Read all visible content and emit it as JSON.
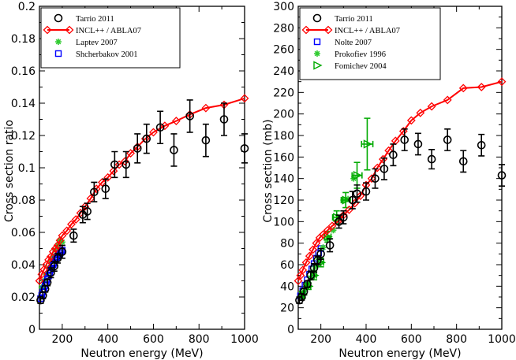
{
  "chart_data": [
    {
      "type": "scatter",
      "xlabel": "Neutron energy (MeV)",
      "ylabel": "Cross section ratio",
      "xlim": [
        100,
        1000
      ],
      "ylim": [
        0,
        0.2
      ],
      "xticks": [
        200,
        400,
        600,
        800,
        1000
      ],
      "yticks": [
        0,
        0.02,
        0.04,
        0.06,
        0.08,
        0.1,
        0.12,
        0.14,
        0.16,
        0.18,
        0.2
      ],
      "xtick_labels": [
        "200",
        "400",
        "600",
        "800",
        "1000"
      ],
      "ytick_labels": [
        "0",
        "0.02",
        "0.04",
        "0.06",
        "0.08",
        "0.1",
        "0.12",
        "0.14",
        "0.16",
        "0.18",
        "0.2"
      ],
      "grid": false,
      "legend_position": "top-left",
      "series": [
        {
          "name": "Tarrio 2011",
          "marker": "circle-open",
          "color": "#000000",
          "points": [
            {
              "x": 105,
              "y": 0.018,
              "e": 0.002
            },
            {
              "x": 115,
              "y": 0.021,
              "e": 0.002
            },
            {
              "x": 125,
              "y": 0.025,
              "e": 0.002
            },
            {
              "x": 135,
              "y": 0.029,
              "e": 0.002
            },
            {
              "x": 150,
              "y": 0.035,
              "e": 0.003
            },
            {
              "x": 165,
              "y": 0.039,
              "e": 0.003
            },
            {
              "x": 180,
              "y": 0.044,
              "e": 0.003
            },
            {
              "x": 200,
              "y": 0.048,
              "e": 0.004
            },
            {
              "x": 250,
              "y": 0.058,
              "e": 0.004
            },
            {
              "x": 290,
              "y": 0.071,
              "e": 0.005
            },
            {
              "x": 310,
              "y": 0.073,
              "e": 0.005
            },
            {
              "x": 340,
              "y": 0.085,
              "e": 0.006
            },
            {
              "x": 390,
              "y": 0.087,
              "e": 0.006
            },
            {
              "x": 430,
              "y": 0.102,
              "e": 0.008
            },
            {
              "x": 480,
              "y": 0.102,
              "e": 0.008
            },
            {
              "x": 530,
              "y": 0.112,
              "e": 0.009
            },
            {
              "x": 570,
              "y": 0.118,
              "e": 0.009
            },
            {
              "x": 630,
              "y": 0.125,
              "e": 0.01
            },
            {
              "x": 690,
              "y": 0.111,
              "e": 0.01
            },
            {
              "x": 760,
              "y": 0.132,
              "e": 0.01
            },
            {
              "x": 830,
              "y": 0.117,
              "e": 0.01
            },
            {
              "x": 910,
              "y": 0.13,
              "e": 0.01
            },
            {
              "x": 1000,
              "y": 0.112,
              "e": 0.009
            }
          ]
        },
        {
          "name": "INCL++ / ABLA07",
          "marker": "diamond-open-line",
          "color": "#ff0000",
          "points": [
            {
              "x": 100,
              "y": 0.03
            },
            {
              "x": 110,
              "y": 0.034
            },
            {
              "x": 120,
              "y": 0.037
            },
            {
              "x": 130,
              "y": 0.04
            },
            {
              "x": 140,
              "y": 0.043
            },
            {
              "x": 150,
              "y": 0.045
            },
            {
              "x": 160,
              "y": 0.048
            },
            {
              "x": 170,
              "y": 0.05
            },
            {
              "x": 180,
              "y": 0.052
            },
            {
              "x": 190,
              "y": 0.055
            },
            {
              "x": 200,
              "y": 0.058
            },
            {
              "x": 220,
              "y": 0.061
            },
            {
              "x": 240,
              "y": 0.065
            },
            {
              "x": 260,
              "y": 0.068
            },
            {
              "x": 280,
              "y": 0.072
            },
            {
              "x": 300,
              "y": 0.076
            },
            {
              "x": 325,
              "y": 0.081
            },
            {
              "x": 350,
              "y": 0.087
            },
            {
              "x": 375,
              "y": 0.091
            },
            {
              "x": 400,
              "y": 0.094
            },
            {
              "x": 425,
              "y": 0.098
            },
            {
              "x": 450,
              "y": 0.102
            },
            {
              "x": 475,
              "y": 0.104
            },
            {
              "x": 500,
              "y": 0.109
            },
            {
              "x": 530,
              "y": 0.113
            },
            {
              "x": 565,
              "y": 0.118
            },
            {
              "x": 600,
              "y": 0.122
            },
            {
              "x": 650,
              "y": 0.126
            },
            {
              "x": 700,
              "y": 0.129
            },
            {
              "x": 760,
              "y": 0.133
            },
            {
              "x": 830,
              "y": 0.137
            },
            {
              "x": 910,
              "y": 0.139
            },
            {
              "x": 1000,
              "y": 0.143
            }
          ]
        },
        {
          "name": "Laptev 2007",
          "marker": "asterisk",
          "color": "#33cc33",
          "points": [
            {
              "x": 110,
              "y": 0.026
            },
            {
              "x": 120,
              "y": 0.03
            },
            {
              "x": 130,
              "y": 0.034
            },
            {
              "x": 140,
              "y": 0.038
            },
            {
              "x": 150,
              "y": 0.042
            },
            {
              "x": 160,
              "y": 0.045
            },
            {
              "x": 170,
              "y": 0.049
            },
            {
              "x": 180,
              "y": 0.052
            },
            {
              "x": 190,
              "y": 0.055
            },
            {
              "x": 200,
              "y": 0.054
            }
          ]
        },
        {
          "name": "Shcherbakov 2001",
          "marker": "square-open",
          "color": "#0000ff",
          "points": [
            {
              "x": 105,
              "y": 0.019
            },
            {
              "x": 110,
              "y": 0.021
            },
            {
              "x": 115,
              "y": 0.023
            },
            {
              "x": 120,
              "y": 0.025
            },
            {
              "x": 125,
              "y": 0.027
            },
            {
              "x": 130,
              "y": 0.029
            },
            {
              "x": 135,
              "y": 0.031
            },
            {
              "x": 140,
              "y": 0.033
            },
            {
              "x": 145,
              "y": 0.035
            },
            {
              "x": 150,
              "y": 0.037
            },
            {
              "x": 155,
              "y": 0.038
            },
            {
              "x": 160,
              "y": 0.04
            },
            {
              "x": 165,
              "y": 0.041
            },
            {
              "x": 170,
              "y": 0.043
            },
            {
              "x": 175,
              "y": 0.044
            },
            {
              "x": 180,
              "y": 0.045
            },
            {
              "x": 185,
              "y": 0.046
            },
            {
              "x": 190,
              "y": 0.047
            },
            {
              "x": 195,
              "y": 0.048
            },
            {
              "x": 200,
              "y": 0.049
            }
          ]
        }
      ]
    },
    {
      "type": "scatter",
      "xlabel": "Neutron energy (MeV)",
      "ylabel": "Cross section (mb)",
      "xlim": [
        100,
        1000
      ],
      "ylim": [
        0,
        300
      ],
      "xticks": [
        200,
        400,
        600,
        800,
        1000
      ],
      "yticks": [
        0,
        20,
        40,
        60,
        80,
        100,
        120,
        140,
        160,
        180,
        200,
        220,
        240,
        260,
        280,
        300
      ],
      "xtick_labels": [
        "200",
        "400",
        "600",
        "800",
        "1000"
      ],
      "ytick_labels": [
        "0",
        "20",
        "40",
        "60",
        "80",
        "100",
        "120",
        "140",
        "160",
        "180",
        "200",
        "220",
        "240",
        "260",
        "280",
        "300"
      ],
      "grid": false,
      "legend_position": "top-left",
      "series": [
        {
          "name": "Tarrio 2011",
          "marker": "circle-open",
          "color": "#000000",
          "points": [
            {
              "x": 105,
              "y": 27,
              "e": 3
            },
            {
              "x": 115,
              "y": 30,
              "e": 3
            },
            {
              "x": 125,
              "y": 35,
              "e": 3
            },
            {
              "x": 140,
              "y": 42,
              "e": 3
            },
            {
              "x": 155,
              "y": 50,
              "e": 4
            },
            {
              "x": 170,
              "y": 57,
              "e": 4
            },
            {
              "x": 185,
              "y": 64,
              "e": 4
            },
            {
              "x": 200,
              "y": 70,
              "e": 5
            },
            {
              "x": 240,
              "y": 78,
              "e": 6
            },
            {
              "x": 280,
              "y": 100,
              "e": 6
            },
            {
              "x": 300,
              "y": 104,
              "e": 6
            },
            {
              "x": 340,
              "y": 120,
              "e": 8
            },
            {
              "x": 360,
              "y": 126,
              "e": 8
            },
            {
              "x": 400,
              "y": 128,
              "e": 8
            },
            {
              "x": 440,
              "y": 140,
              "e": 9
            },
            {
              "x": 480,
              "y": 149,
              "e": 10
            },
            {
              "x": 520,
              "y": 162,
              "e": 10
            },
            {
              "x": 570,
              "y": 176,
              "e": 10
            },
            {
              "x": 630,
              "y": 172,
              "e": 10
            },
            {
              "x": 690,
              "y": 158,
              "e": 9
            },
            {
              "x": 760,
              "y": 176,
              "e": 10
            },
            {
              "x": 830,
              "y": 156,
              "e": 10
            },
            {
              "x": 910,
              "y": 171,
              "e": 10
            },
            {
              "x": 1000,
              "y": 143,
              "e": 10
            }
          ]
        },
        {
          "name": "INCL++ / ABLA07",
          "marker": "diamond-open-line",
          "color": "#ff0000",
          "points": [
            {
              "x": 100,
              "y": 45
            },
            {
              "x": 110,
              "y": 50
            },
            {
              "x": 120,
              "y": 55
            },
            {
              "x": 135,
              "y": 62
            },
            {
              "x": 150,
              "y": 68
            },
            {
              "x": 165,
              "y": 74
            },
            {
              "x": 180,
              "y": 80
            },
            {
              "x": 195,
              "y": 85
            },
            {
              "x": 210,
              "y": 88
            },
            {
              "x": 230,
              "y": 92
            },
            {
              "x": 250,
              "y": 96
            },
            {
              "x": 275,
              "y": 100
            },
            {
              "x": 300,
              "y": 106
            },
            {
              "x": 325,
              "y": 111
            },
            {
              "x": 350,
              "y": 117
            },
            {
              "x": 375,
              "y": 124
            },
            {
              "x": 400,
              "y": 134
            },
            {
              "x": 425,
              "y": 140
            },
            {
              "x": 450,
              "y": 150
            },
            {
              "x": 475,
              "y": 158
            },
            {
              "x": 500,
              "y": 166
            },
            {
              "x": 530,
              "y": 175
            },
            {
              "x": 565,
              "y": 184
            },
            {
              "x": 600,
              "y": 194
            },
            {
              "x": 640,
              "y": 201
            },
            {
              "x": 690,
              "y": 207
            },
            {
              "x": 760,
              "y": 213
            },
            {
              "x": 830,
              "y": 224
            },
            {
              "x": 910,
              "y": 225
            },
            {
              "x": 1000,
              "y": 230
            }
          ]
        },
        {
          "name": "Nolte 2007",
          "marker": "square-open",
          "color": "#0000ff",
          "points": [
            {
              "x": 110,
              "y": 31
            },
            {
              "x": 120,
              "y": 36
            },
            {
              "x": 130,
              "y": 41
            },
            {
              "x": 140,
              "y": 46
            },
            {
              "x": 150,
              "y": 51
            },
            {
              "x": 160,
              "y": 56
            },
            {
              "x": 170,
              "y": 61
            },
            {
              "x": 180,
              "y": 66
            },
            {
              "x": 190,
              "y": 71
            },
            {
              "x": 200,
              "y": 75
            }
          ]
        },
        {
          "name": "Prokofiev 1996",
          "marker": "asterisk",
          "color": "#33cc33",
          "points": [
            {
              "x": 115,
              "y": 30
            },
            {
              "x": 125,
              "y": 35
            },
            {
              "x": 135,
              "y": 39
            },
            {
              "x": 145,
              "y": 43
            },
            {
              "x": 155,
              "y": 48
            },
            {
              "x": 165,
              "y": 53
            },
            {
              "x": 175,
              "y": 58
            },
            {
              "x": 190,
              "y": 65
            },
            {
              "x": 210,
              "y": 76
            },
            {
              "x": 230,
              "y": 84
            },
            {
              "x": 255,
              "y": 92
            },
            {
              "x": 275,
              "y": 104
            },
            {
              "x": 300,
              "y": 120
            },
            {
              "x": 320,
              "y": 121
            },
            {
              "x": 345,
              "y": 140
            }
          ]
        },
        {
          "name": "Fomichev 2004",
          "marker": "triangle-right-open",
          "color": "#00aa00",
          "points": [
            {
              "x": 120,
              "y": 32,
              "e": 3,
              "ex": 8
            },
            {
              "x": 145,
              "y": 40,
              "e": 3,
              "ex": 10
            },
            {
              "x": 170,
              "y": 50,
              "e": 4,
              "ex": 10
            },
            {
              "x": 200,
              "y": 62,
              "e": 4,
              "ex": 12
            },
            {
              "x": 230,
              "y": 86,
              "e": 5,
              "ex": 15
            },
            {
              "x": 270,
              "y": 104,
              "e": 6,
              "ex": 18
            },
            {
              "x": 310,
              "y": 120,
              "e": 7,
              "ex": 20
            },
            {
              "x": 360,
              "y": 143,
              "e": 12,
              "ex": 22
            },
            {
              "x": 405,
              "y": 172,
              "e": 24,
              "ex": 25
            }
          ]
        }
      ]
    }
  ]
}
